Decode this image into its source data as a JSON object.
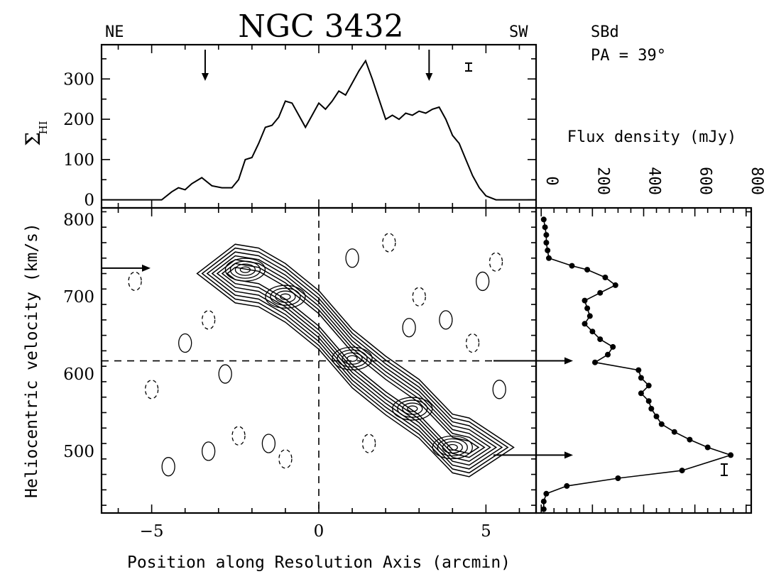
{
  "header": {
    "title": "NGC 3432",
    "left_label": "NE",
    "right_label": "SW",
    "galaxy_type": "SBd",
    "pa_label": "PA = 39°"
  },
  "chart_data": [
    {
      "id": "profile",
      "type": "line",
      "ylabel": "Σ",
      "ylabel_sub": "HI",
      "xlim": [
        -6.5,
        6.5
      ],
      "ylim": [
        -20,
        385
      ],
      "yticks": [
        0,
        100,
        200,
        300
      ],
      "x": [
        -6.5,
        -4.7,
        -4.4,
        -4.2,
        -4.0,
        -3.8,
        -3.5,
        -3.2,
        -2.9,
        -2.6,
        -2.4,
        -2.2,
        -2.0,
        -1.8,
        -1.6,
        -1.4,
        -1.2,
        -1.0,
        -0.8,
        -0.6,
        -0.4,
        -0.2,
        0.0,
        0.2,
        0.4,
        0.6,
        0.8,
        1.0,
        1.2,
        1.4,
        1.6,
        1.8,
        2.0,
        2.2,
        2.4,
        2.6,
        2.8,
        3.0,
        3.2,
        3.4,
        3.6,
        3.8,
        4.0,
        4.2,
        4.4,
        4.6,
        4.8,
        5.0,
        5.3,
        6.5
      ],
      "values": [
        0,
        0,
        20,
        30,
        25,
        40,
        55,
        35,
        30,
        30,
        50,
        100,
        105,
        140,
        180,
        185,
        205,
        245,
        240,
        210,
        180,
        210,
        240,
        225,
        245,
        270,
        260,
        290,
        320,
        345,
        300,
        250,
        200,
        210,
        200,
        215,
        210,
        220,
        215,
        225,
        230,
        200,
        160,
        140,
        100,
        60,
        30,
        10,
        0,
        0
      ],
      "markers": [
        {
          "x": -3.4,
          "direction": "down"
        },
        {
          "x": 3.3,
          "direction": "down"
        }
      ]
    },
    {
      "id": "position-velocity",
      "type": "contour",
      "xlabel": "Position along Resolution Axis (arcmin)",
      "ylabel": "Heliocentric velocity (km/s)",
      "xlim": [
        -6.5,
        6.5
      ],
      "ylim": [
        420,
        815
      ],
      "xticks": [
        -5,
        0,
        5
      ],
      "yticks": [
        500,
        600,
        700,
        800
      ],
      "systemic_velocity": 617,
      "center_position": 0,
      "ridge": [
        [
          -2.5,
          730
        ],
        [
          -1.8,
          725
        ],
        [
          -1.0,
          705
        ],
        [
          0.0,
          670
        ],
        [
          1.0,
          620
        ],
        [
          2.0,
          585
        ],
        [
          3.0,
          555
        ],
        [
          4.0,
          510
        ],
        [
          4.5,
          505
        ]
      ],
      "contour_levels": 7,
      "arrows": [
        {
          "side": "left",
          "velocity": 737
        },
        {
          "side": "right",
          "velocity": 617
        },
        {
          "side": "right",
          "velocity": 495
        }
      ]
    },
    {
      "id": "spectrum",
      "type": "line",
      "xlabel": "Flux density (mJy)",
      "xlim": [
        -20,
        820
      ],
      "xticks": [
        0,
        200,
        400,
        600,
        800
      ],
      "ylim": [
        420,
        815
      ],
      "velocity": [
        800,
        790,
        780,
        770,
        760,
        750,
        740,
        735,
        725,
        715,
        705,
        695,
        685,
        675,
        665,
        655,
        645,
        635,
        625,
        615,
        605,
        595,
        585,
        575,
        565,
        555,
        545,
        535,
        525,
        515,
        505,
        495,
        475,
        465,
        455,
        445,
        435,
        425
      ],
      "flux": [
        10,
        15,
        20,
        20,
        25,
        30,
        120,
        180,
        250,
        290,
        230,
        170,
        180,
        190,
        170,
        200,
        230,
        280,
        260,
        210,
        380,
        390,
        420,
        390,
        420,
        430,
        450,
        470,
        520,
        580,
        650,
        740,
        550,
        300,
        100,
        20,
        10,
        10
      ]
    }
  ]
}
